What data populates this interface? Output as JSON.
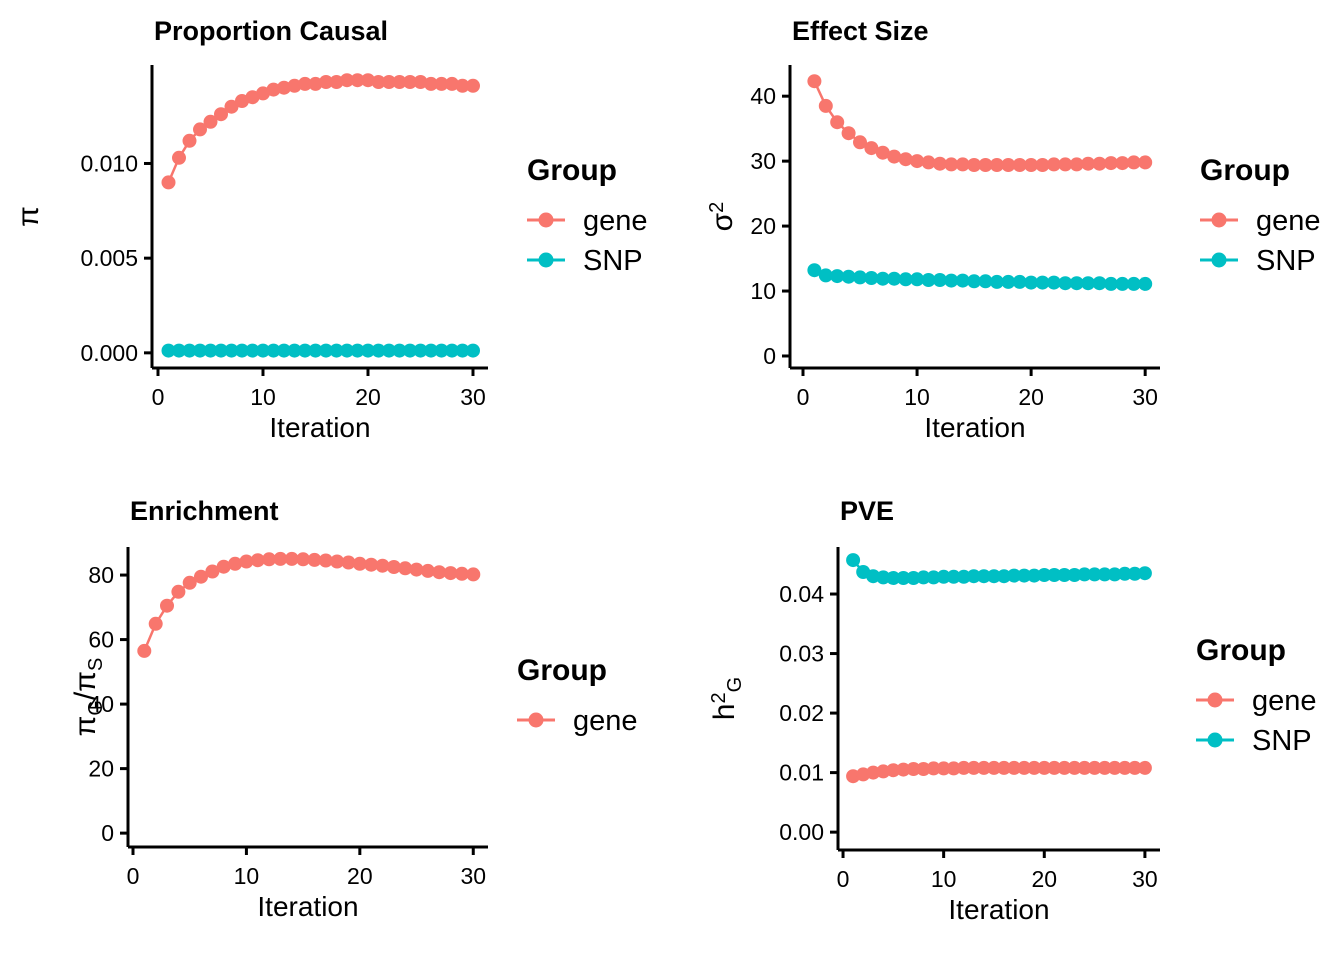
{
  "figure_title": "EM iteration trace panels",
  "colors": {
    "gene": "#F8766D",
    "SNP": "#00BFC4",
    "axis": "#000000",
    "text": "#000000",
    "background": "#FFFFFF"
  },
  "iterations": [
    1,
    2,
    3,
    4,
    5,
    6,
    7,
    8,
    9,
    10,
    11,
    12,
    13,
    14,
    15,
    16,
    17,
    18,
    19,
    20,
    21,
    22,
    23,
    24,
    25,
    26,
    27,
    28,
    29,
    30
  ],
  "chart_data": [
    {
      "type": "line",
      "title": "Proportion Causal",
      "xlabel": "Iteration",
      "ylabel": "π",
      "ylabel_segments": [
        {
          "t": "π",
          "style": "normal"
        }
      ],
      "xlim": [
        -0.57,
        31.43
      ],
      "ylim": [
        -0.0008,
        0.0152
      ],
      "xticks": [
        {
          "v": 0,
          "label": "0"
        },
        {
          "v": 10,
          "label": "10"
        },
        {
          "v": 20,
          "label": "20"
        },
        {
          "v": 30,
          "label": "30"
        }
      ],
      "yticks": [
        {
          "v": 0,
          "label": "0.000"
        },
        {
          "v": 0.005,
          "label": "0.005"
        },
        {
          "v": 0.01,
          "label": "0.010"
        }
      ],
      "grid": false,
      "legend": {
        "title": "Group",
        "position": "right",
        "entries": [
          {
            "name": "gene",
            "color": "#F8766D"
          },
          {
            "name": "SNP",
            "color": "#00BFC4"
          }
        ]
      },
      "series": [
        {
          "name": "gene",
          "color": "#F8766D",
          "values": [
            0.009,
            0.0103,
            0.0112,
            0.0118,
            0.0122,
            0.0126,
            0.013,
            0.0133,
            0.0135,
            0.0137,
            0.0139,
            0.014,
            0.0141,
            0.0142,
            0.0142,
            0.0143,
            0.0143,
            0.0144,
            0.0144,
            0.0144,
            0.0143,
            0.0143,
            0.0143,
            0.0143,
            0.0143,
            0.0142,
            0.0142,
            0.0142,
            0.0141,
            0.0141
          ]
        },
        {
          "name": "SNP",
          "color": "#00BFC4",
          "values": [
            0.00012,
            0.00012,
            0.00012,
            0.00012,
            0.00012,
            0.00012,
            0.00012,
            0.00012,
            0.00012,
            0.00012,
            0.00012,
            0.00012,
            0.00012,
            0.00012,
            0.00012,
            0.00012,
            0.00012,
            0.00012,
            0.00012,
            0.00012,
            0.00012,
            0.00012,
            0.00012,
            0.00012,
            0.00012,
            0.00012,
            0.00012,
            0.00012,
            0.00012,
            0.00012
          ]
        }
      ]
    },
    {
      "type": "line",
      "title": "Effect Size",
      "xlabel": "Iteration",
      "ylabel": "σ²",
      "ylabel_segments": [
        {
          "t": "σ",
          "style": "normal"
        },
        {
          "t": "2",
          "style": "sup"
        }
      ],
      "xlim": [
        -1.14,
        31.3
      ],
      "ylim": [
        -1.85,
        44.8
      ],
      "xticks": [
        {
          "v": 0,
          "label": "0"
        },
        {
          "v": 10,
          "label": "10"
        },
        {
          "v": 20,
          "label": "20"
        },
        {
          "v": 30,
          "label": "30"
        }
      ],
      "yticks": [
        {
          "v": 0,
          "label": "0"
        },
        {
          "v": 10,
          "label": "10"
        },
        {
          "v": 20,
          "label": "20"
        },
        {
          "v": 30,
          "label": "30"
        },
        {
          "v": 40,
          "label": "40"
        }
      ],
      "grid": false,
      "legend": {
        "title": "Group",
        "position": "right",
        "entries": [
          {
            "name": "gene",
            "color": "#F8766D"
          },
          {
            "name": "SNP",
            "color": "#00BFC4"
          }
        ]
      },
      "series": [
        {
          "name": "gene",
          "color": "#F8766D",
          "values": [
            42.3,
            38.5,
            36.0,
            34.3,
            32.9,
            32.0,
            31.3,
            30.7,
            30.3,
            30.0,
            29.8,
            29.6,
            29.5,
            29.5,
            29.4,
            29.4,
            29.4,
            29.4,
            29.4,
            29.4,
            29.4,
            29.5,
            29.5,
            29.5,
            29.6,
            29.6,
            29.7,
            29.7,
            29.8,
            29.8
          ]
        },
        {
          "name": "SNP",
          "color": "#00BFC4",
          "values": [
            13.2,
            12.4,
            12.3,
            12.2,
            12.1,
            12.0,
            11.9,
            11.9,
            11.8,
            11.8,
            11.7,
            11.7,
            11.6,
            11.6,
            11.5,
            11.5,
            11.4,
            11.4,
            11.4,
            11.3,
            11.3,
            11.3,
            11.2,
            11.2,
            11.2,
            11.2,
            11.1,
            11.1,
            11.1,
            11.1
          ]
        }
      ]
    },
    {
      "type": "line",
      "title": "Enrichment",
      "xlabel": "Iteration",
      "ylabel": "πG/πS",
      "ylabel_segments": [
        {
          "t": "π",
          "style": "normal"
        },
        {
          "t": "G",
          "style": "sub"
        },
        {
          "t": "/",
          "style": "normal"
        },
        {
          "t": "π",
          "style": "normal"
        },
        {
          "t": "S",
          "style": "sub"
        }
      ],
      "xlim": [
        -0.44,
        31.3
      ],
      "ylim": [
        -4.3,
        88.7
      ],
      "xticks": [
        {
          "v": 0,
          "label": "0"
        },
        {
          "v": 10,
          "label": "10"
        },
        {
          "v": 20,
          "label": "20"
        },
        {
          "v": 30,
          "label": "30"
        }
      ],
      "yticks": [
        {
          "v": 0,
          "label": "0"
        },
        {
          "v": 20,
          "label": "20"
        },
        {
          "v": 40,
          "label": "40"
        },
        {
          "v": 60,
          "label": "60"
        },
        {
          "v": 80,
          "label": "80"
        }
      ],
      "grid": false,
      "legend": {
        "title": "Group",
        "position": "right",
        "entries": [
          {
            "name": "gene",
            "color": "#F8766D"
          }
        ]
      },
      "series": [
        {
          "name": "gene",
          "color": "#F8766D",
          "values": [
            56.5,
            64.9,
            70.5,
            74.8,
            77.6,
            79.5,
            81.1,
            82.6,
            83.5,
            84.2,
            84.6,
            84.9,
            85.0,
            85.0,
            84.9,
            84.7,
            84.5,
            84.2,
            83.9,
            83.5,
            83.2,
            82.9,
            82.5,
            82.1,
            81.7,
            81.3,
            80.9,
            80.6,
            80.4,
            80.2
          ]
        }
      ]
    },
    {
      "type": "line",
      "title": "PVE",
      "xlabel": "Iteration",
      "ylabel": "h²G",
      "ylabel_segments": [
        {
          "t": "h",
          "style": "normal"
        },
        {
          "t": "2",
          "style": "sup"
        },
        {
          "t": "G",
          "style": "sub"
        }
      ],
      "xlim": [
        -0.5,
        31.5
      ],
      "ylim": [
        -0.003,
        0.0479
      ],
      "xticks": [
        {
          "v": 0,
          "label": "0"
        },
        {
          "v": 10,
          "label": "10"
        },
        {
          "v": 20,
          "label": "20"
        },
        {
          "v": 30,
          "label": "30"
        }
      ],
      "yticks": [
        {
          "v": 0,
          "label": "0.00"
        },
        {
          "v": 0.01,
          "label": "0.01"
        },
        {
          "v": 0.02,
          "label": "0.02"
        },
        {
          "v": 0.03,
          "label": "0.03"
        },
        {
          "v": 0.04,
          "label": "0.04"
        }
      ],
      "grid": false,
      "legend": {
        "title": "Group",
        "position": "right",
        "entries": [
          {
            "name": "gene",
            "color": "#F8766D"
          },
          {
            "name": "SNP",
            "color": "#00BFC4"
          }
        ]
      },
      "series": [
        {
          "name": "gene",
          "color": "#F8766D",
          "values": [
            0.0094,
            0.0097,
            0.01,
            0.0102,
            0.0104,
            0.0105,
            0.0106,
            0.0106,
            0.0107,
            0.0107,
            0.0107,
            0.0108,
            0.0108,
            0.0108,
            0.0108,
            0.0108,
            0.0108,
            0.0108,
            0.0108,
            0.0108,
            0.0108,
            0.0108,
            0.0108,
            0.0108,
            0.0108,
            0.0108,
            0.0108,
            0.0108,
            0.0108,
            0.0108
          ]
        },
        {
          "name": "SNP",
          "color": "#00BFC4",
          "values": [
            0.0457,
            0.0437,
            0.043,
            0.0428,
            0.0427,
            0.0427,
            0.0427,
            0.0428,
            0.0428,
            0.0429,
            0.0429,
            0.0429,
            0.043,
            0.043,
            0.043,
            0.043,
            0.0431,
            0.0431,
            0.0431,
            0.0432,
            0.0432,
            0.0432,
            0.0432,
            0.0433,
            0.0433,
            0.0433,
            0.0433,
            0.0434,
            0.0434,
            0.0435
          ]
        }
      ]
    }
  ]
}
